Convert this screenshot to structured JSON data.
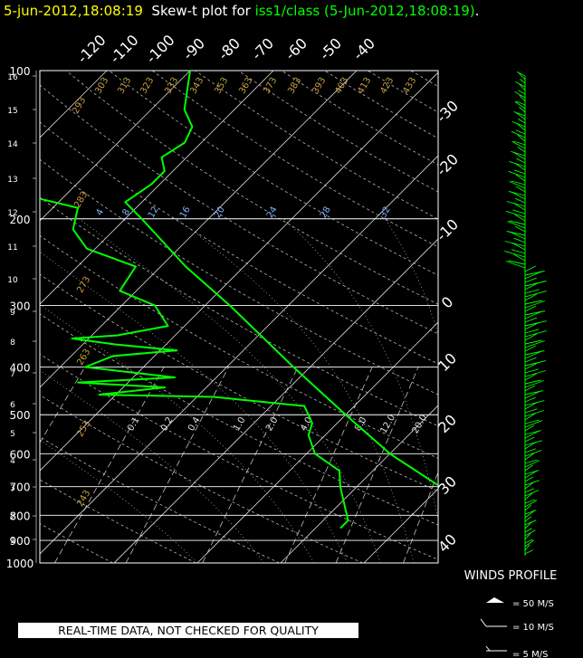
{
  "header": {
    "time": "5-jun-2012,18:08:19",
    "label": "Skew-t plot for",
    "source": "iss1/class (5-Jun-2012,18:08:19)",
    "dot": "."
  },
  "quality_note": "REAL-TIME DATA, NOT CHECKED FOR QUALITY",
  "colors": {
    "background": "#000000",
    "sounding": "#00ff00",
    "title_time": "#ffff00",
    "theta": "#c8a040",
    "mixing": "#80b0ff",
    "grid": "#ffffff"
  },
  "chart_data": {
    "type": "line",
    "title": "Skew-t plot for iss1/class (5-Jun-2012,18:08:19)",
    "y_scale": "log",
    "ylim": [
      1000,
      100
    ],
    "pressure_levels": [
      "100",
      "200",
      "300",
      "400",
      "500",
      "600",
      "700",
      "800",
      "900",
      "1000"
    ],
    "height_km_labels": [
      "1",
      "2",
      "3",
      "4",
      "5",
      "6",
      "7",
      "8",
      "9",
      "10",
      "11",
      "12",
      "13",
      "14",
      "15",
      "16"
    ],
    "top_temp_labels": [
      "-120",
      "-110",
      "-100",
      "-90",
      "-80",
      "-70",
      "-60",
      "-50",
      "-40"
    ],
    "right_temp_labels": [
      "-30",
      "-20",
      "-10",
      "0",
      "10",
      "20",
      "30",
      "40"
    ],
    "theta_labels": [
      "293",
      "303",
      "313",
      "323",
      "333",
      "343",
      "353",
      "363",
      "373",
      "383",
      "393",
      "403",
      "413",
      "423",
      "433",
      "283",
      "273",
      "263",
      "253",
      "243"
    ],
    "mixing_ratio_labels_top": [
      "4",
      "8",
      "12",
      "16",
      "20",
      "24",
      "28",
      "32"
    ],
    "mixing_ratio_labels_low": [
      "0.1",
      "0.2",
      "0.4",
      "1.0",
      "2.0",
      "4.0",
      "8.0",
      "12.0",
      "20.0"
    ],
    "series": [
      {
        "name": "Temperature",
        "points": [
          [
            850,
            33
          ],
          [
            800,
            28
          ],
          [
            700,
            20
          ],
          [
            600,
            10
          ],
          [
            500,
            0
          ],
          [
            400,
            -12
          ],
          [
            300,
            -27
          ],
          [
            250,
            -37
          ],
          [
            200,
            -48
          ],
          [
            185,
            -52
          ],
          [
            170,
            -51
          ],
          [
            160,
            -51
          ],
          [
            150,
            -53
          ],
          [
            140,
            -52
          ],
          [
            130,
            -53
          ],
          [
            120,
            -56
          ],
          [
            100,
            -60
          ]
        ]
      },
      {
        "name": "Dew point",
        "points": [
          [
            850,
            13
          ],
          [
            820,
            13
          ],
          [
            700,
            8
          ],
          [
            650,
            6
          ],
          [
            600,
            1
          ],
          [
            550,
            -2
          ],
          [
            520,
            -3
          ],
          [
            480,
            -6
          ],
          [
            460,
            -18
          ],
          [
            455,
            -32
          ],
          [
            440,
            -25
          ],
          [
            430,
            -36
          ],
          [
            420,
            -25
          ],
          [
            400,
            -37
          ],
          [
            380,
            -35
          ],
          [
            370,
            -28
          ],
          [
            360,
            -36
          ],
          [
            350,
            -42
          ],
          [
            345,
            -37
          ],
          [
            330,
            -32
          ],
          [
            300,
            -36
          ],
          [
            280,
            -42
          ],
          [
            250,
            -43
          ],
          [
            230,
            -51
          ],
          [
            210,
            -55
          ],
          [
            190,
            -57
          ],
          [
            175,
            -68
          ],
          [
            160,
            -72
          ],
          [
            140,
            -76
          ],
          [
            120,
            -81
          ],
          [
            100,
            -86
          ]
        ]
      }
    ],
    "winds_title": "WINDS PROFILE",
    "wind_legend": [
      "= 50 M/S",
      "= 10 M/S",
      "= 5 M/S"
    ]
  }
}
